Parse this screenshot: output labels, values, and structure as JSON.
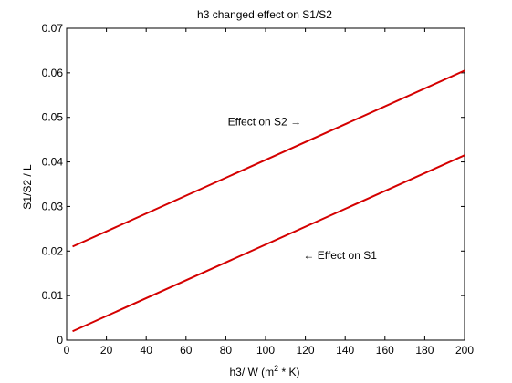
{
  "chart_data": {
    "type": "line",
    "title": "h3 changed effect on S1/S2",
    "xlabel": "h3/ W (m",
    "xlabel_sup": "2",
    "xlabel_rest": " * K)",
    "ylabel": "S1/S2 / L",
    "xlim": [
      0,
      200
    ],
    "ylim": [
      0,
      0.07
    ],
    "x_ticks": [
      0,
      20,
      40,
      60,
      80,
      100,
      120,
      140,
      160,
      180,
      200
    ],
    "y_ticks": [
      0,
      0.01,
      0.02,
      0.03,
      0.04,
      0.05,
      0.06,
      0.07
    ],
    "y_tick_labels": [
      "0",
      "0.01",
      "0.02",
      "0.03",
      "0.04",
      "0.05",
      "0.06",
      "0.07"
    ],
    "grid": false,
    "series": [
      {
        "name": "S2",
        "color": "#d40000",
        "x": [
          3,
          200
        ],
        "y": [
          0.021,
          0.0605
        ]
      },
      {
        "name": "S1",
        "color": "#d40000",
        "x": [
          3,
          200
        ],
        "y": [
          0.002,
          0.0415
        ]
      }
    ],
    "annotations": [
      {
        "text": "Effect on S2 →",
        "x": 81,
        "y": 0.049
      },
      {
        "text": "← Effect on S1",
        "x": 119,
        "y": 0.019
      }
    ]
  }
}
